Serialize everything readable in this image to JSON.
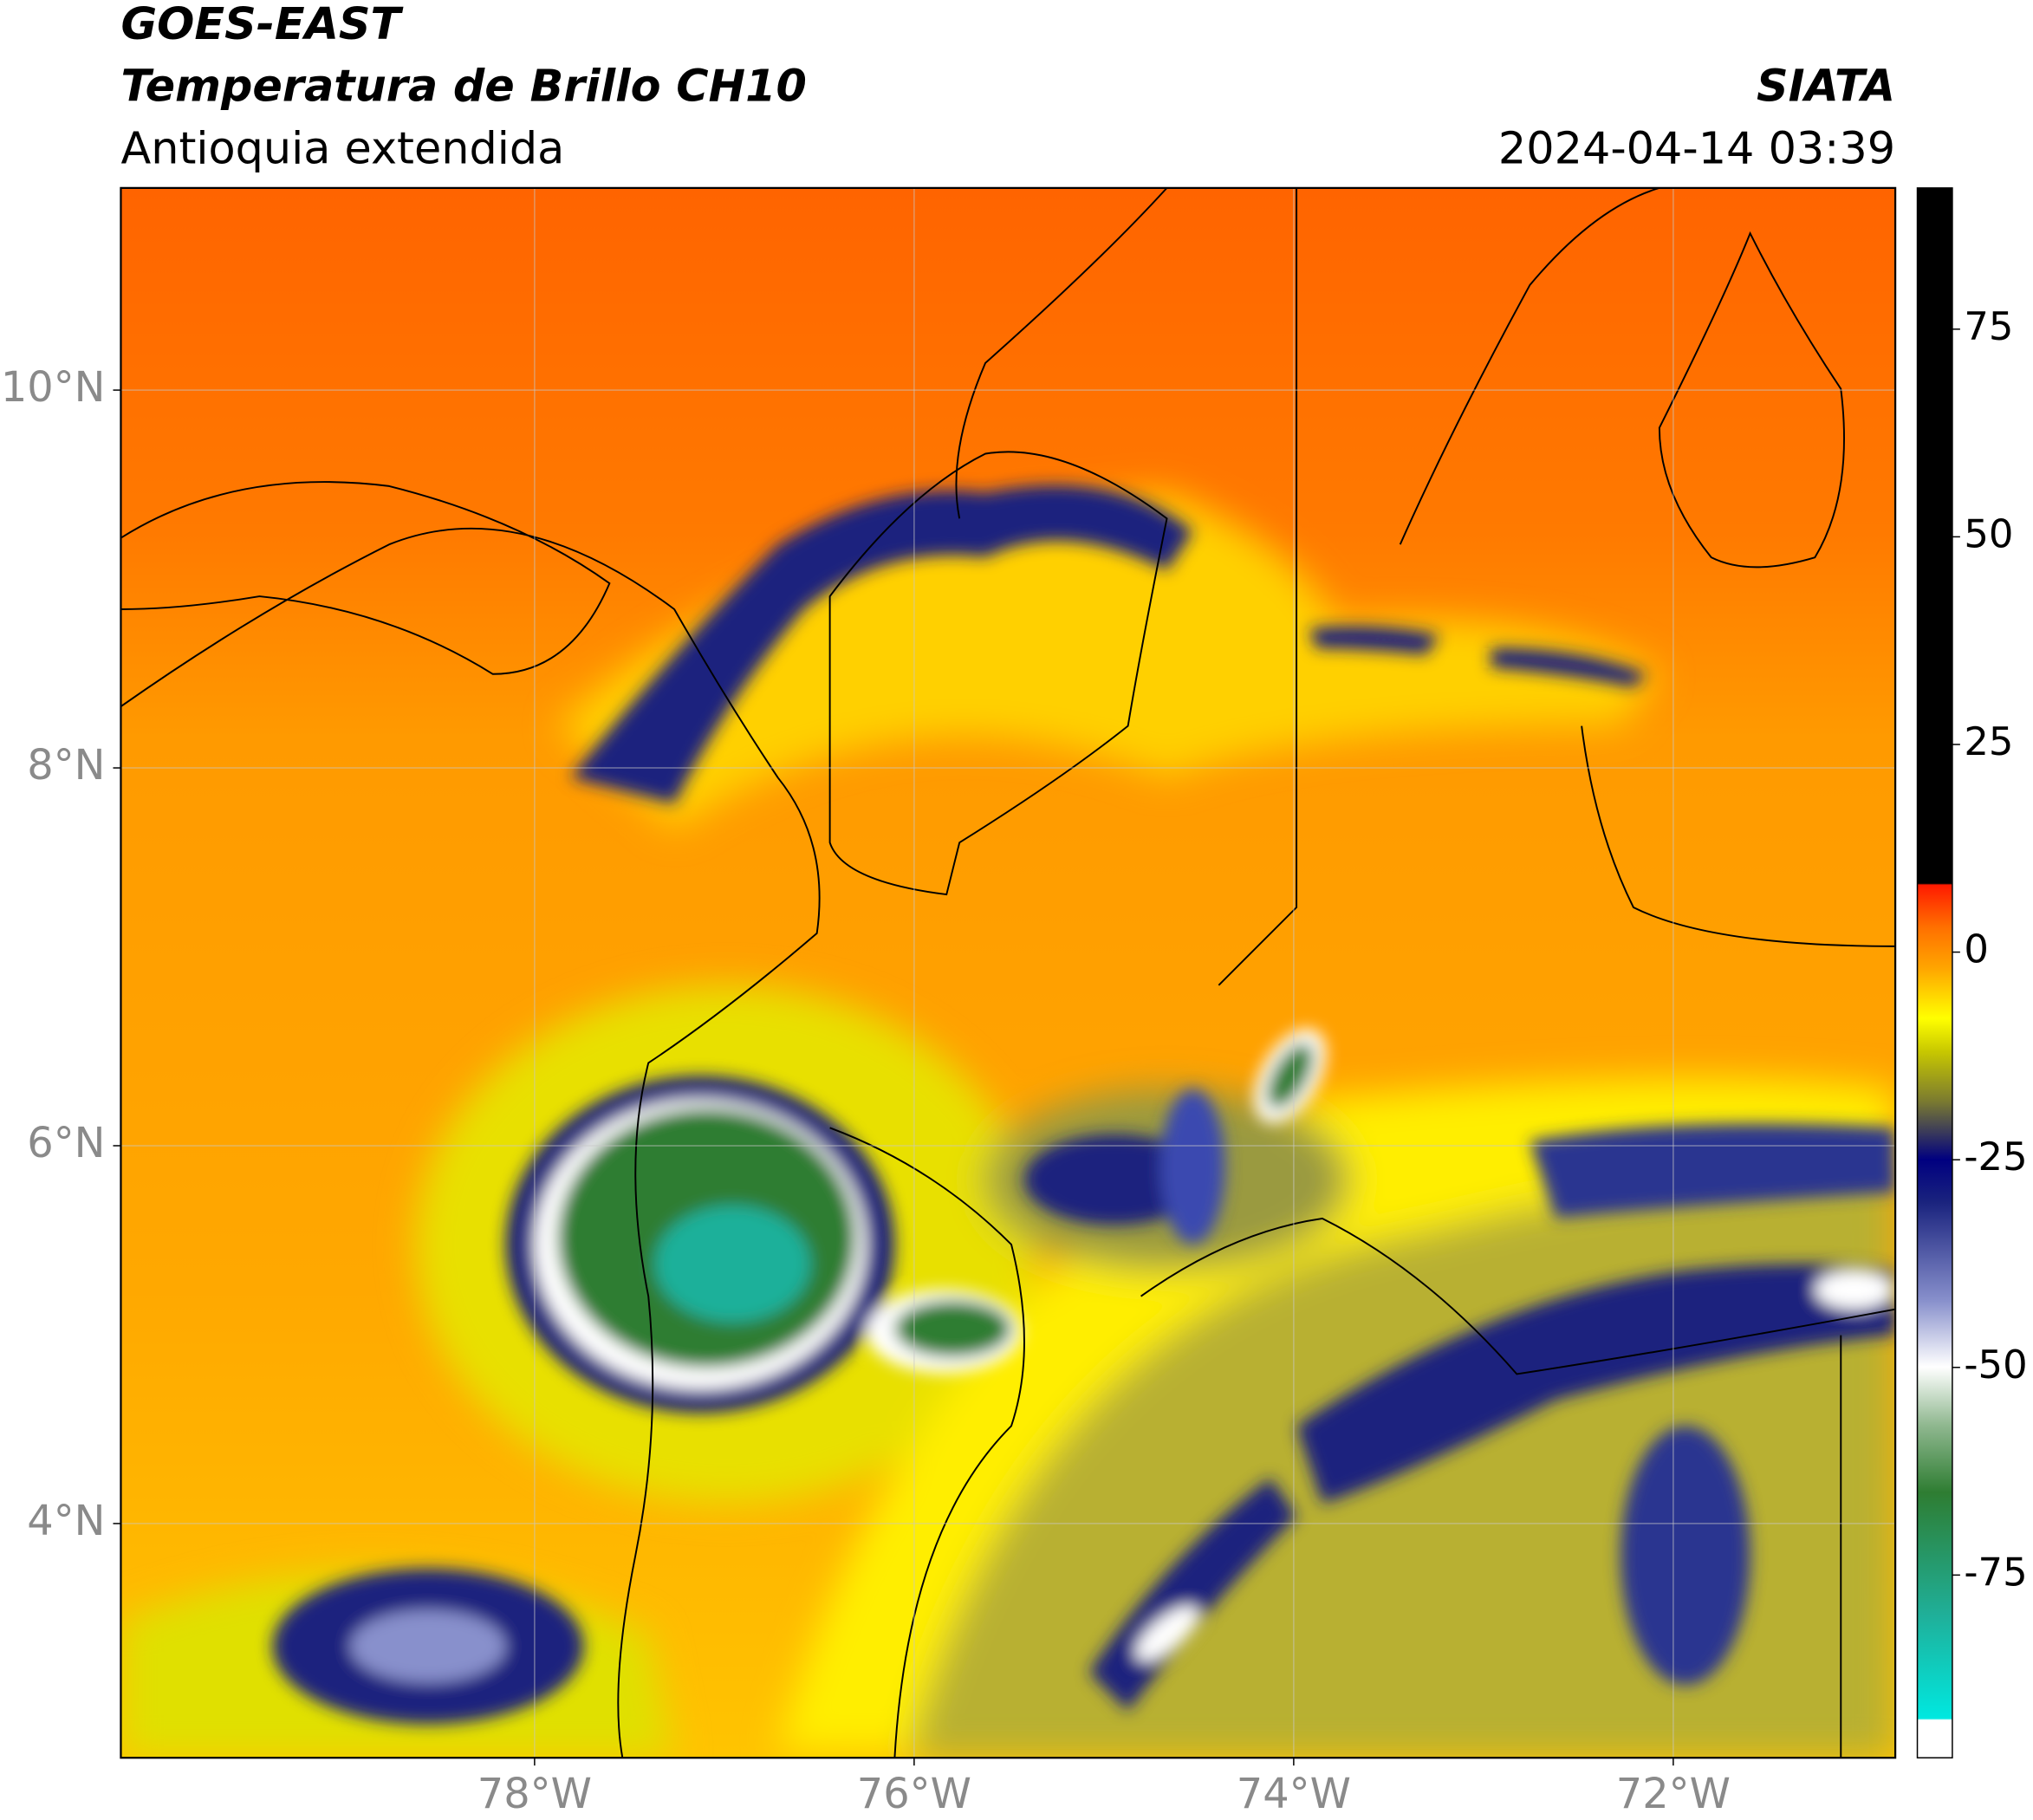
{
  "header": {
    "title": "GOES-EAST",
    "subtitle": "Temperatura de Brillo CH10",
    "region": "Antioquia extendida",
    "source": "SIATA",
    "timestamp": "2024-04-14 03:39"
  },
  "map": {
    "xlim": [
      -80.18,
      -70.83
    ],
    "ylim": [
      2.76,
      11.07
    ],
    "xticks": [
      {
        "value": -78,
        "label": "78°W"
      },
      {
        "value": -76,
        "label": "76°W"
      },
      {
        "value": -74,
        "label": "74°W"
      },
      {
        "value": -72,
        "label": "72°W"
      }
    ],
    "yticks": [
      {
        "value": 10,
        "label": "10°N"
      },
      {
        "value": 8,
        "label": "8°N"
      },
      {
        "value": 6,
        "label": "6°N"
      },
      {
        "value": 4,
        "label": "4°N"
      }
    ],
    "grid": true
  },
  "colorbar": {
    "lim": [
      -97,
      92
    ],
    "ticks": [
      75,
      50,
      25,
      0,
      -25,
      -50,
      -75
    ]
  }
}
